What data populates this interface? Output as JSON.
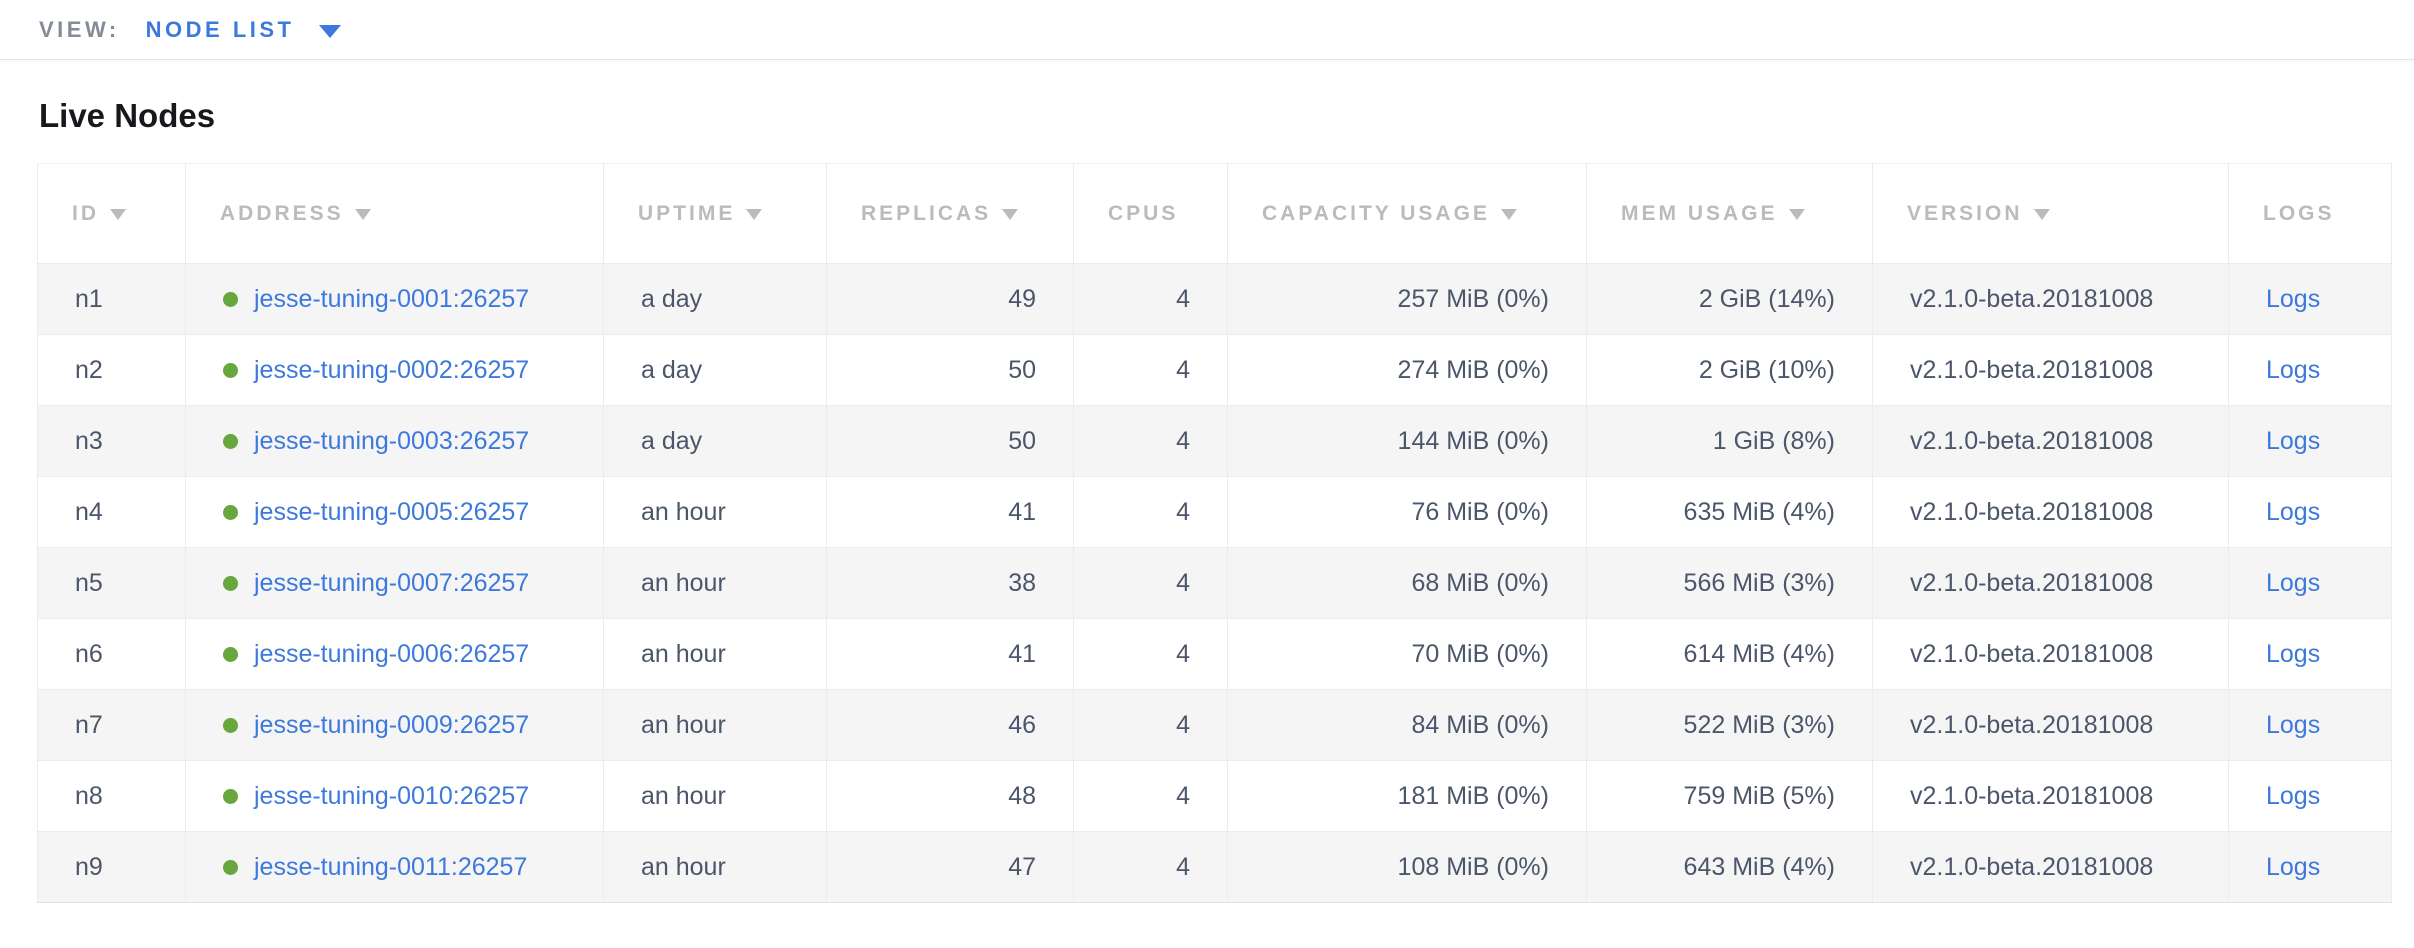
{
  "view_bar": {
    "label": "VIEW:",
    "selected": "NODE LIST",
    "dropdown_icon": "caret-down-icon"
  },
  "page_title": "Live Nodes",
  "table": {
    "columns": [
      {
        "key": "id",
        "label": "ID",
        "sortable": true,
        "align": "left"
      },
      {
        "key": "address",
        "label": "ADDRESS",
        "sortable": true,
        "align": "left"
      },
      {
        "key": "uptime",
        "label": "UPTIME",
        "sortable": true,
        "align": "left"
      },
      {
        "key": "replicas",
        "label": "REPLICAS",
        "sortable": true,
        "align": "right"
      },
      {
        "key": "cpus",
        "label": "CPUS",
        "sortable": false,
        "align": "right"
      },
      {
        "key": "capacity_usage",
        "label": "CAPACITY USAGE",
        "sortable": true,
        "align": "right"
      },
      {
        "key": "mem_usage",
        "label": "MEM USAGE",
        "sortable": true,
        "align": "right"
      },
      {
        "key": "version",
        "label": "VERSION",
        "sortable": true,
        "align": "left"
      },
      {
        "key": "logs",
        "label": "LOGS",
        "sortable": false,
        "align": "left"
      }
    ],
    "rows": [
      {
        "id": "n1",
        "status": "healthy",
        "address": "jesse-tuning-0001:26257",
        "uptime": "a day",
        "replicas": "49",
        "cpus": "4",
        "capacity_usage": "257 MiB (0%)",
        "mem_usage": "2 GiB (14%)",
        "version": "v2.1.0-beta.20181008",
        "logs": "Logs"
      },
      {
        "id": "n2",
        "status": "healthy",
        "address": "jesse-tuning-0002:26257",
        "uptime": "a day",
        "replicas": "50",
        "cpus": "4",
        "capacity_usage": "274 MiB (0%)",
        "mem_usage": "2 GiB (10%)",
        "version": "v2.1.0-beta.20181008",
        "logs": "Logs"
      },
      {
        "id": "n3",
        "status": "healthy",
        "address": "jesse-tuning-0003:26257",
        "uptime": "a day",
        "replicas": "50",
        "cpus": "4",
        "capacity_usage": "144 MiB (0%)",
        "mem_usage": "1 GiB (8%)",
        "version": "v2.1.0-beta.20181008",
        "logs": "Logs"
      },
      {
        "id": "n4",
        "status": "healthy",
        "address": "jesse-tuning-0005:26257",
        "uptime": "an hour",
        "replicas": "41",
        "cpus": "4",
        "capacity_usage": "76 MiB (0%)",
        "mem_usage": "635 MiB (4%)",
        "version": "v2.1.0-beta.20181008",
        "logs": "Logs"
      },
      {
        "id": "n5",
        "status": "healthy",
        "address": "jesse-tuning-0007:26257",
        "uptime": "an hour",
        "replicas": "38",
        "cpus": "4",
        "capacity_usage": "68 MiB (0%)",
        "mem_usage": "566 MiB (3%)",
        "version": "v2.1.0-beta.20181008",
        "logs": "Logs"
      },
      {
        "id": "n6",
        "status": "healthy",
        "address": "jesse-tuning-0006:26257",
        "uptime": "an hour",
        "replicas": "41",
        "cpus": "4",
        "capacity_usage": "70 MiB (0%)",
        "mem_usage": "614 MiB (4%)",
        "version": "v2.1.0-beta.20181008",
        "logs": "Logs"
      },
      {
        "id": "n7",
        "status": "healthy",
        "address": "jesse-tuning-0009:26257",
        "uptime": "an hour",
        "replicas": "46",
        "cpus": "4",
        "capacity_usage": "84 MiB (0%)",
        "mem_usage": "522 MiB (3%)",
        "version": "v2.1.0-beta.20181008",
        "logs": "Logs"
      },
      {
        "id": "n8",
        "status": "healthy",
        "address": "jesse-tuning-0010:26257",
        "uptime": "an hour",
        "replicas": "48",
        "cpus": "4",
        "capacity_usage": "181 MiB (0%)",
        "mem_usage": "759 MiB (5%)",
        "version": "v2.1.0-beta.20181008",
        "logs": "Logs"
      },
      {
        "id": "n9",
        "status": "healthy",
        "address": "jesse-tuning-0011:26257",
        "uptime": "an hour",
        "replicas": "47",
        "cpus": "4",
        "capacity_usage": "108 MiB (0%)",
        "mem_usage": "643 MiB (4%)",
        "version": "v2.1.0-beta.20181008",
        "logs": "Logs"
      }
    ]
  },
  "colors": {
    "accent_blue": "#3d79dc",
    "healthy_green": "#68a63e",
    "header_gray": "#b9bbbe",
    "body_text": "#4c566a",
    "muted_label": "#858c97"
  }
}
